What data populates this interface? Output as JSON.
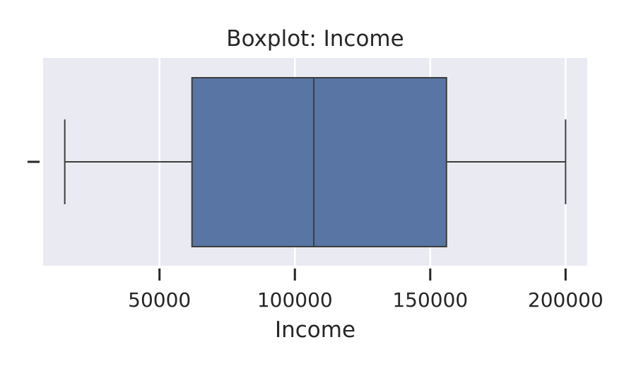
{
  "chart_data": {
    "type": "boxplot",
    "title": "Boxplot: Income",
    "xlabel": "Income",
    "ylabel": "",
    "orientation": "horizontal",
    "xlim": [
      7000,
      208000
    ],
    "x_ticks": [
      50000,
      100000,
      150000,
      200000
    ],
    "x_tick_labels": [
      "50000",
      "100000",
      "150000",
      "200000"
    ],
    "grid": true,
    "stats": {
      "whisker_low": 15000,
      "q1": 62000,
      "median": 107000,
      "q3": 156000,
      "whisker_high": 200000
    },
    "colors": {
      "background": "#eaeaf2",
      "box_fill": "#5875a4",
      "line": "#3d3d3d",
      "text": "#262626"
    }
  }
}
